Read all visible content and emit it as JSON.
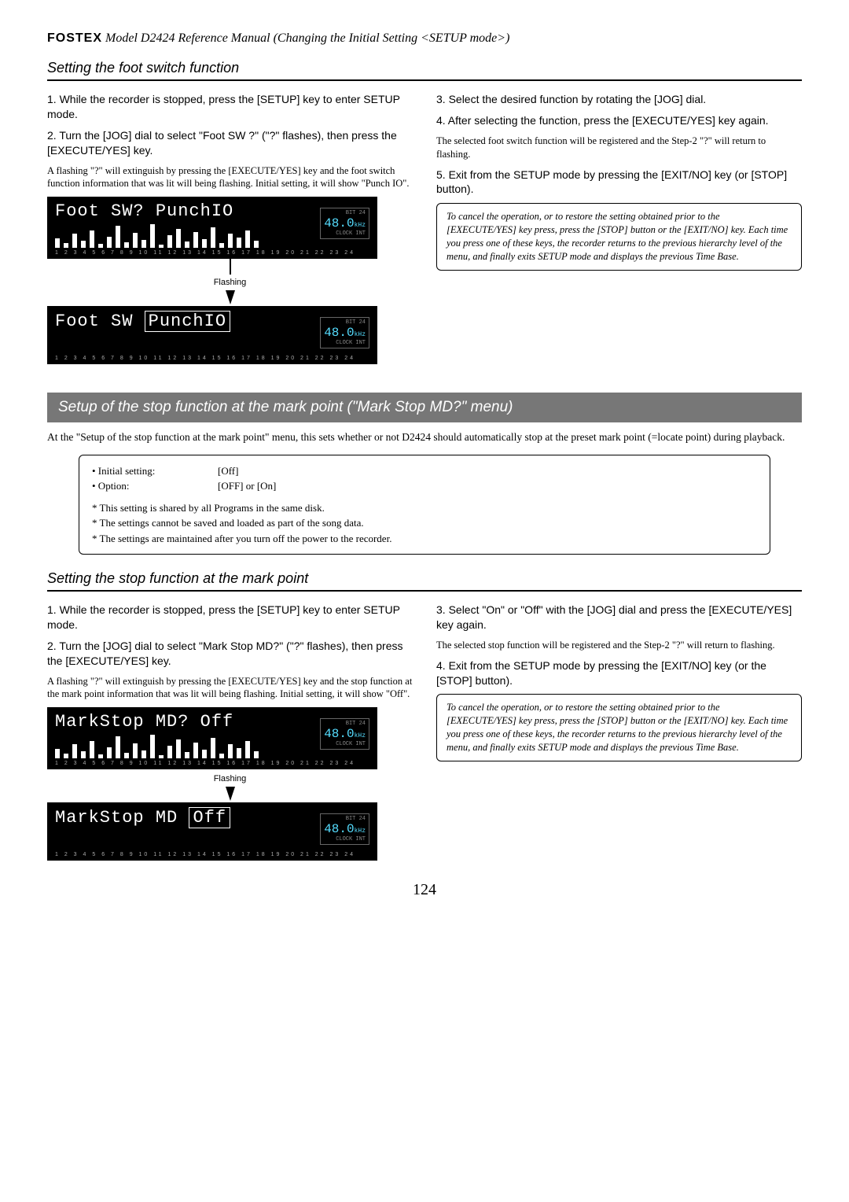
{
  "header": {
    "brand": "FOSTEX",
    "rest": " Model D2424  Reference Manual (Changing the Initial Setting <SETUP mode>)"
  },
  "section1": {
    "title": "Setting the foot switch function",
    "left": {
      "step1": "1. While the recorder is stopped, press the [SETUP] key to enter SETUP mode.",
      "step2": "2. Turn the [JOG] dial to select \"Foot SW ?\" (\"?\" flashes), then press the [EXECUTE/YES] key.",
      "step2_note": "A flashing \"?\" will extinguish by pressing the [EXECUTE/YES] key and the foot switch function information that was lit will being flashing.  Initial setting, it will show \"Punch IO\".",
      "lcd1_text": "Foot SW? PunchIO",
      "flash_label": "Flashing",
      "lcd2_text_a": "Foot SW ",
      "lcd2_text_b": "PunchIO",
      "digits": "48.0",
      "digits_unit": "kHz",
      "digits_top": "BIT    24",
      "digits_bot": "CLOCK INT"
    },
    "right": {
      "step3": "3. Select the desired function by rotating the [JOG] dial.",
      "step4": "4. After selecting the function, press the [EXECUTE/YES] key again.",
      "step4_note": "The selected foot switch function will be registered and the Step-2 \"?\" will return to flashing.",
      "step5": "5. Exit from the SETUP mode by pressing the [EXIT/NO] key (or [STOP] button).",
      "note": "To cancel the operation, or to restore the setting obtained prior to the [EXECUTE/YES] key press, press the [STOP] button or the [EXIT/NO] key.  Each time you press one of these keys, the recorder returns to the previous hierarchy level of the menu, and finally exits SETUP mode and displays the previous Time Base."
    }
  },
  "banner_title": "Setup of the stop function at the mark point (\"Mark Stop MD?\" menu)",
  "intro": "At the \"Setup of the stop function at the mark point\" menu, this sets whether or not D2424 should automatically stop at the preset mark point (=locate point) during playback.",
  "settings": {
    "initial_k": "• Initial setting:",
    "initial_v": "[Off]",
    "option_k": "• Option:",
    "option_v": "[OFF] or [On]",
    "n1": "* This setting is shared by all Programs in the same disk.",
    "n2": "* The settings cannot be saved and loaded as part of the song data.",
    "n3": "* The settings are maintained after you turn off the power to the recorder."
  },
  "section2": {
    "title": "Setting the stop function at the mark point",
    "left": {
      "step1": "1. While the recorder is stopped, press the [SETUP] key to enter SETUP mode.",
      "step2": "2. Turn the [JOG] dial to select \"Mark Stop MD?\" (\"?\" flashes), then press the [EXECUTE/YES] key.",
      "step2_note": "A flashing \"?\" will extinguish by pressing the [EXECUTE/YES] key and the stop function at the mark point information that was lit will being flashing.  Initial setting, it will show \"Off\".",
      "lcd1_text": "MarkStop MD? Off",
      "flash_label": "Flashing",
      "lcd2_text_a": "MarkStop MD ",
      "lcd2_text_b": "Off"
    },
    "right": {
      "step3": "3. Select \"On\" or \"Off\" with the [JOG] dial and press the [EXECUTE/YES] key again.",
      "step3_note": "The selected stop function will be registered and the Step-2 \"?\" will return to flashing.",
      "step4": "4. Exit from the SETUP mode by pressing the [EXIT/NO] key (or the [STOP] button).",
      "note": "To cancel the operation, or to restore the setting obtained prior to the [EXECUTE/YES] key press, press the [STOP] button or the [EXIT/NO] key.  Each time you press one of these keys, the recorder returns to the previous hierarchy level of the menu, and finally exits SETUP mode and displays the previous Time Base."
    }
  },
  "lcd_bars": [
    12,
    6,
    18,
    9,
    22,
    5,
    14,
    28,
    7,
    19,
    10,
    30,
    4,
    16,
    24,
    8,
    20,
    11,
    26,
    6,
    18,
    13,
    22,
    9
  ],
  "lcd_numbers": "1  2  3  4  5  6  7  8  9 10 11 12 13 14 15 16 17 18 19 20 21 22 23 24",
  "page": "124"
}
